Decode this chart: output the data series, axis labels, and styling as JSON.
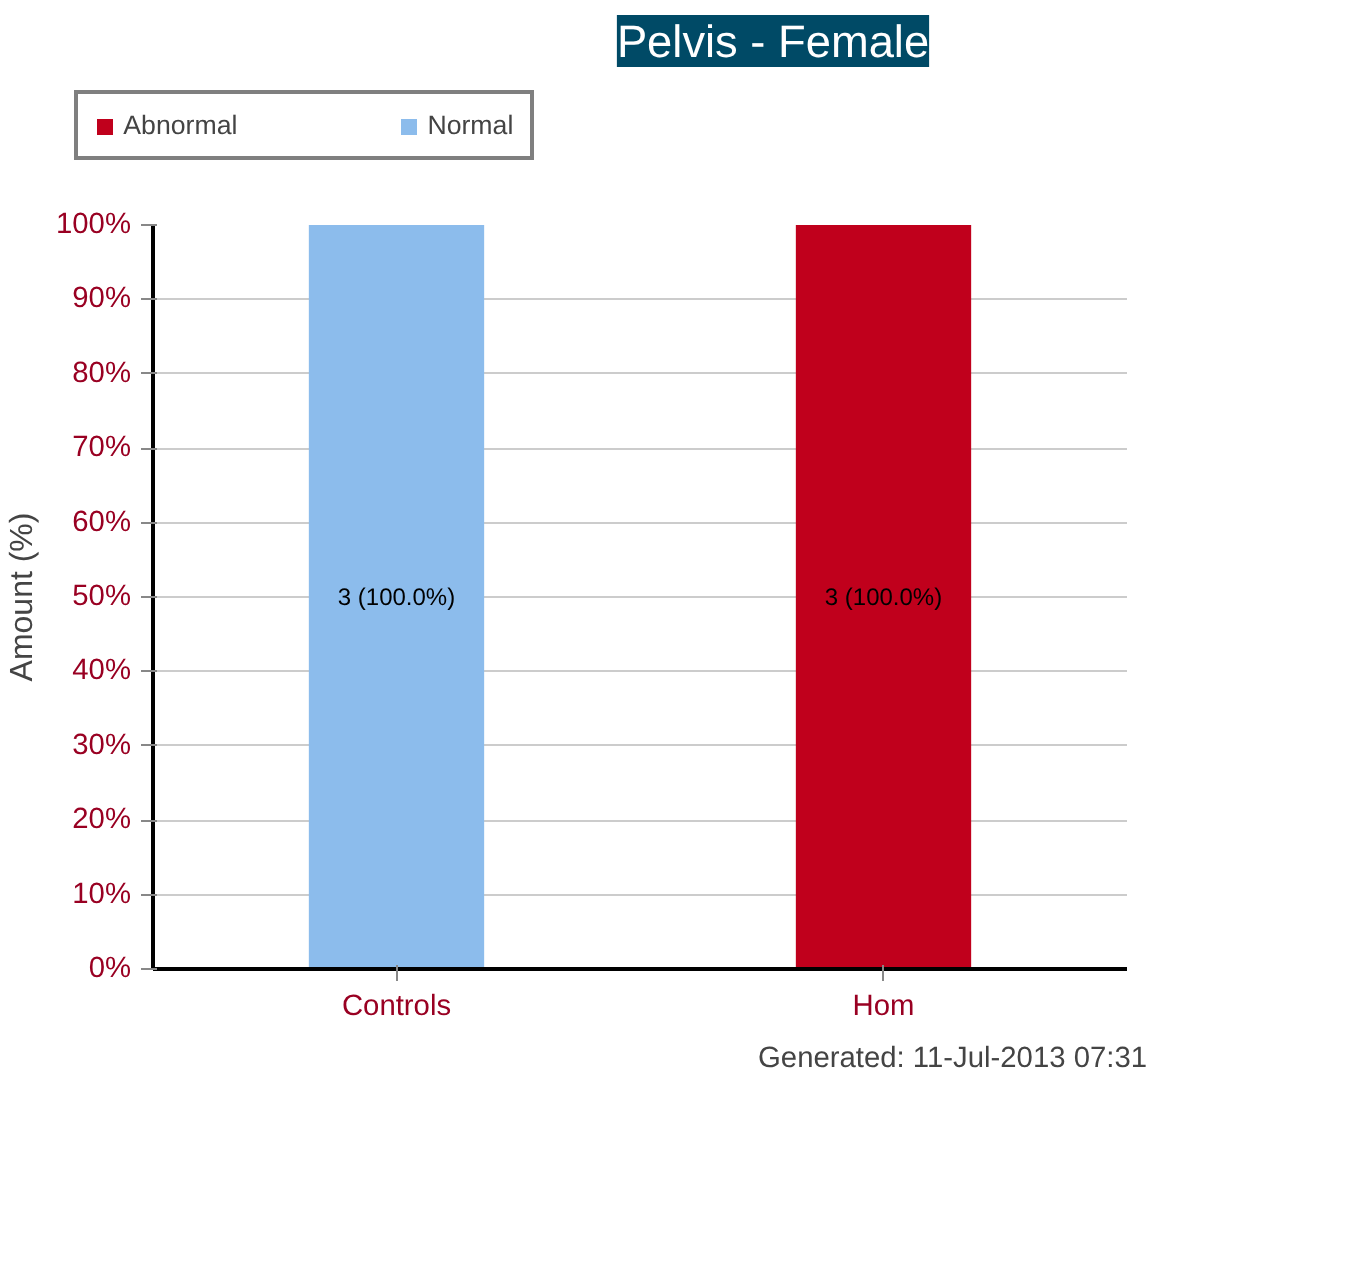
{
  "chart_data": {
    "type": "bar",
    "title": "Pelvis - Female",
    "ylabel": "Amount (%)",
    "categories": [
      "Controls",
      "Hom"
    ],
    "stacked": true,
    "series": [
      {
        "name": "Abnormal",
        "color": "#c0001c",
        "values": [
          0,
          100
        ],
        "value_labels": [
          null,
          "3 (100.0%)"
        ]
      },
      {
        "name": "Normal",
        "color": "#8cbcec",
        "values": [
          100,
          0
        ],
        "value_labels": [
          "3 (100.0%)",
          null
        ]
      }
    ],
    "ylim": [
      0,
      100
    ],
    "yticks": [
      {
        "value": 0,
        "label": "0%"
      },
      {
        "value": 10,
        "label": "10%"
      },
      {
        "value": 20,
        "label": "20%"
      },
      {
        "value": 30,
        "label": "30%"
      },
      {
        "value": 40,
        "label": "40%"
      },
      {
        "value": 50,
        "label": "50%"
      },
      {
        "value": 60,
        "label": "60%"
      },
      {
        "value": 70,
        "label": "70%"
      },
      {
        "value": 80,
        "label": "80%"
      },
      {
        "value": 90,
        "label": "90%"
      },
      {
        "value": 100,
        "label": "100%"
      }
    ],
    "grid": true,
    "legend": "top",
    "annotations": [
      "Generated: 11-Jul-2013 07:31"
    ]
  }
}
